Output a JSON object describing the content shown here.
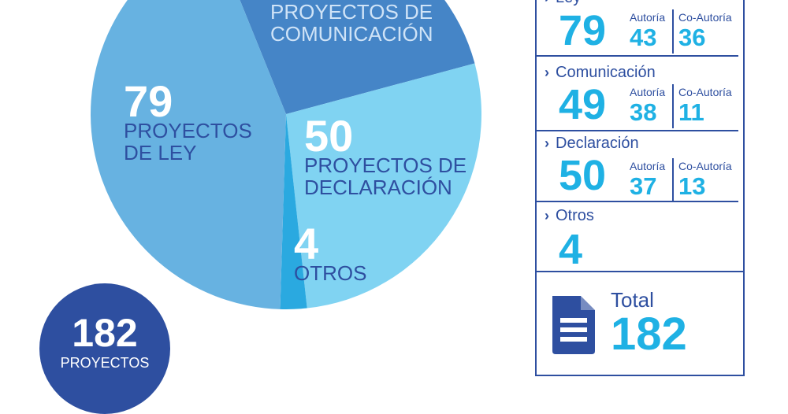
{
  "chart_data": {
    "type": "pie",
    "slices": [
      {
        "value": 79,
        "label": "PROYECTOS DE LEY",
        "color": "#67b2e1"
      },
      {
        "value": 49,
        "label": "PROYECTOS DE COMUNICACIÓN",
        "color": "#4585c7"
      },
      {
        "value": 50,
        "label": "PROYECTOS DE DECLARACIÓN",
        "color": "#80d3f2"
      },
      {
        "value": 4,
        "label": "OTROS",
        "color": "#2aa9e0"
      }
    ],
    "total": 182
  },
  "pie_labels": {
    "ley": {
      "number": "79",
      "line1": "PROYECTOS",
      "line2": "DE LEY"
    },
    "comunicacion": {
      "line1": "PROYECTOS DE",
      "line2": "COMUNICACIÓN"
    },
    "declaracion": {
      "number": "50",
      "line1": "PROYECTOS DE",
      "line2": "DECLARACIÓN"
    },
    "otros": {
      "number": "4",
      "line1": "OTROS"
    }
  },
  "total_badge": {
    "number": "182",
    "label": "PROYECTOS"
  },
  "breakdown": {
    "rows": [
      {
        "name": "Ley",
        "total": "79",
        "autoria_label": "Autoría",
        "autoria": "43",
        "coautoria_label": "Co-Autoría",
        "coautoria": "36"
      },
      {
        "name": "Comunicación",
        "total": "49",
        "autoria_label": "Autoría",
        "autoria": "38",
        "coautoria_label": "Co-Autoría",
        "coautoria": "11"
      },
      {
        "name": "Declaración",
        "total": "50",
        "autoria_label": "Autoría",
        "autoria": "37",
        "coautoria_label": "Co-Autoría",
        "coautoria": "13"
      },
      {
        "name": "Otros",
        "total": "4"
      }
    ],
    "total_label": "Total",
    "total_value": "182",
    "total_icon": "document-icon"
  },
  "colors": {
    "dark_blue": "#2e4fa0",
    "accent_cyan": "#1fb1e4"
  }
}
